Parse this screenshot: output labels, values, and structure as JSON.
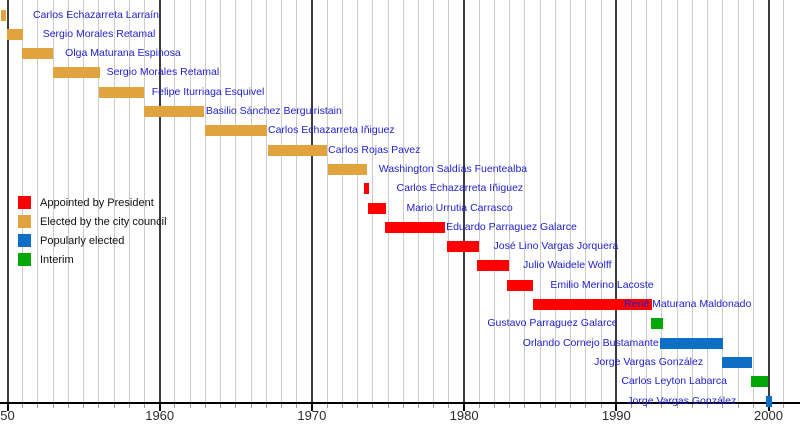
{
  "chart_data": {
    "type": "timeline-gantt",
    "description": "Timeline of mayors: colored bars show term of office per person, one row per term",
    "text_color_names": "#2121ce",
    "x_axis": {
      "unit": "year",
      "range_start": 1949.5,
      "range_end": 2002,
      "minor_grid_every_years": 1,
      "major_grid_every_years": 10,
      "ticks": [
        {
          "year": 1950,
          "label": "50"
        },
        {
          "year": 1960,
          "label": "1960"
        },
        {
          "year": 1970,
          "label": "1970"
        },
        {
          "year": 1980,
          "label": "1980"
        },
        {
          "year": 1990,
          "label": "1990"
        },
        {
          "year": 2000,
          "label": "2000"
        }
      ]
    },
    "legend": {
      "position": "middle-left",
      "items": [
        {
          "key": "president",
          "label": "Appointed by President",
          "color": "#fe0000"
        },
        {
          "key": "council",
          "label": "Elected by the city council",
          "color": "#e1a33d"
        },
        {
          "key": "popular",
          "label": "Popularly elected",
          "color": "#0d6ec6"
        },
        {
          "key": "interim",
          "label": "Interim",
          "color": "#00a707"
        }
      ]
    },
    "items": [
      {
        "name": "Carlos Echazarreta Larraín",
        "key": "council",
        "start": 1949.55,
        "end": 1949.9,
        "label_side": "right",
        "label_dx": 23
      },
      {
        "name": "Sergio Morales Retamal",
        "key": "council",
        "start": 1949.95,
        "end": 1951.0,
        "label_side": "right",
        "label_dx": 16
      },
      {
        "name": "Olga Maturana Espinosa",
        "key": "council",
        "start": 1950.95,
        "end": 1953.0,
        "label_side": "right",
        "label_dx": 8
      },
      {
        "name": "Sergio Morales Retamal",
        "key": "council",
        "start": 1953.0,
        "end": 1956.05,
        "label_side": "right",
        "label_dx": 3
      },
      {
        "name": "Felipe Iturriaga Esquivel",
        "key": "council",
        "start": 1956.0,
        "end": 1958.95,
        "label_side": "right",
        "label_dx": 4
      },
      {
        "name": "Basilio Sánchez Berguiristain",
        "key": "council",
        "start": 1959.0,
        "end": 1962.9,
        "label_side": "right",
        "label_dx": -2
      },
      {
        "name": "Carlos Echazarreta Iñiguez",
        "key": "council",
        "start": 1963.0,
        "end": 1967.05,
        "label_side": "right",
        "label_dx": -3
      },
      {
        "name": "Carlos Rojas Pavez",
        "key": "council",
        "start": 1967.1,
        "end": 1971.0,
        "label_side": "right",
        "label_dx": -3
      },
      {
        "name": "Washington Saldías Fuentealba",
        "key": "council",
        "start": 1971.05,
        "end": 1973.6,
        "label_side": "right",
        "label_dx": 8
      },
      {
        "name": "Carlos Echazarreta Iñiguez",
        "key": "president",
        "start": 1973.45,
        "end": 1973.72,
        "label_side": "right",
        "label_dx": 24
      },
      {
        "name": "Mario Urrutia Carrasco",
        "key": "president",
        "start": 1973.68,
        "end": 1974.9,
        "label_side": "right",
        "label_dx": 16
      },
      {
        "name": "Eduardo Parraguez Galarce",
        "key": "president",
        "start": 1974.8,
        "end": 1978.75,
        "label_side": "right",
        "label_dx": -3
      },
      {
        "name": "José Lino Vargas Jorquera",
        "key": "president",
        "start": 1978.85,
        "end": 1980.95,
        "label_side": "right",
        "label_dx": 11
      },
      {
        "name": "Julio Waidele Wolff",
        "key": "president",
        "start": 1980.85,
        "end": 1982.95,
        "label_side": "right",
        "label_dx": 10
      },
      {
        "name": "Emilio Merino Lacoste",
        "key": "president",
        "start": 1982.85,
        "end": 1984.55,
        "label_side": "right",
        "label_dx": 13
      },
      {
        "name": "René Maturana Maldonado",
        "key": "president",
        "start": 1984.5,
        "end": 1992.35,
        "label_side": "right",
        "label_dx": -32
      },
      {
        "name": "Gustavo Parraguez Galarce",
        "key": "interim",
        "start": 1992.25,
        "end": 1993.05,
        "label_side": "left",
        "label_dx": -29
      },
      {
        "name": "Orlando Cornejo Bustamante",
        "key": "popular",
        "start": 1992.85,
        "end": 1997.0,
        "label_side": "left",
        "label_dx": 3
      },
      {
        "name": "Jorge Vargas González",
        "key": "popular",
        "start": 1996.95,
        "end": 1998.9,
        "label_side": "left",
        "label_dx": -15
      },
      {
        "name": "Carlos Leyton Labarca",
        "key": "interim",
        "start": 1998.85,
        "end": 1999.95,
        "label_side": "left",
        "label_dx": -20
      },
      {
        "name": "Jorge Vargas González",
        "key": "popular",
        "start": 1999.85,
        "end": 2000.2,
        "label_side": "left",
        "label_dx": -26
      }
    ]
  }
}
